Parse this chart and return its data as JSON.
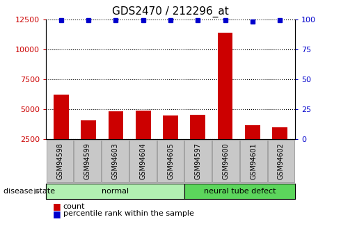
{
  "title": "GDS2470 / 212296_at",
  "samples": [
    "GSM94598",
    "GSM94599",
    "GSM94603",
    "GSM94604",
    "GSM94605",
    "GSM94597",
    "GSM94600",
    "GSM94601",
    "GSM94602"
  ],
  "counts": [
    6200,
    4050,
    4800,
    4900,
    4450,
    4550,
    11400,
    3650,
    3500
  ],
  "percentiles": [
    99,
    99,
    99,
    99,
    99,
    99,
    99,
    98,
    99
  ],
  "bar_color": "#cc0000",
  "dot_color": "#0000cc",
  "ylim_left": [
    2500,
    12500
  ],
  "ylim_right": [
    0,
    100
  ],
  "yticks_left": [
    2500,
    5000,
    7500,
    10000,
    12500
  ],
  "ytick_labels_left": [
    "2500",
    "5000",
    "7500",
    "10000",
    "12500"
  ],
  "yticks_right": [
    0,
    25,
    50,
    75,
    100
  ],
  "ytick_labels_right": [
    "0",
    "25",
    "50",
    "75",
    "100"
  ],
  "groups": [
    {
      "label": "normal",
      "start": 0,
      "end": 4,
      "color": "#b2f0b2"
    },
    {
      "label": "neural tube defect",
      "start": 5,
      "end": 8,
      "color": "#5cd65c"
    }
  ],
  "disease_state_label": "disease state",
  "legend_count_label": "count",
  "legend_percentile_label": "percentile rank within the sample",
  "background_color": "#ffffff",
  "tick_label_bg": "#c8c8c8"
}
